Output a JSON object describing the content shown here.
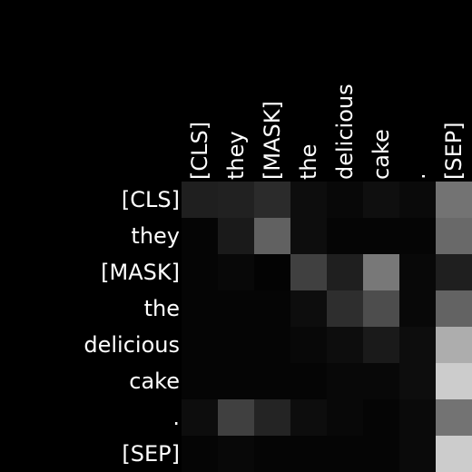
{
  "colors": {
    "background": "#000000",
    "text": "#ffffff",
    "colormap": "grayscale"
  },
  "chart_data": {
    "type": "heatmap",
    "title": "",
    "xlabel": "",
    "ylabel": "",
    "x_labels": [
      "[CLS]",
      "they",
      "[MASK]",
      "the",
      "delicious",
      "cake",
      ".",
      "[SEP]"
    ],
    "y_labels": [
      "[CLS]",
      "they",
      "[MASK]",
      "the",
      "delicious",
      "cake",
      ".",
      "[SEP]"
    ],
    "x_label_position": "top",
    "x_label_rotation": "vertical",
    "value_range": [
      0,
      1
    ],
    "values": [
      [
        0.12,
        0.13,
        0.17,
        0.05,
        0.03,
        0.06,
        0.04,
        0.45
      ],
      [
        0.02,
        0.1,
        0.38,
        0.05,
        0.02,
        0.02,
        0.02,
        0.41
      ],
      [
        0.02,
        0.03,
        0.01,
        0.25,
        0.12,
        0.47,
        0.03,
        0.12
      ],
      [
        0.02,
        0.02,
        0.02,
        0.05,
        0.18,
        0.3,
        0.03,
        0.39
      ],
      [
        0.02,
        0.02,
        0.02,
        0.03,
        0.05,
        0.1,
        0.05,
        0.68
      ],
      [
        0.02,
        0.02,
        0.02,
        0.02,
        0.03,
        0.03,
        0.05,
        0.8
      ],
      [
        0.05,
        0.25,
        0.14,
        0.05,
        0.03,
        0.02,
        0.04,
        0.45
      ],
      [
        0.02,
        0.03,
        0.02,
        0.02,
        0.02,
        0.02,
        0.04,
        0.8
      ]
    ]
  }
}
